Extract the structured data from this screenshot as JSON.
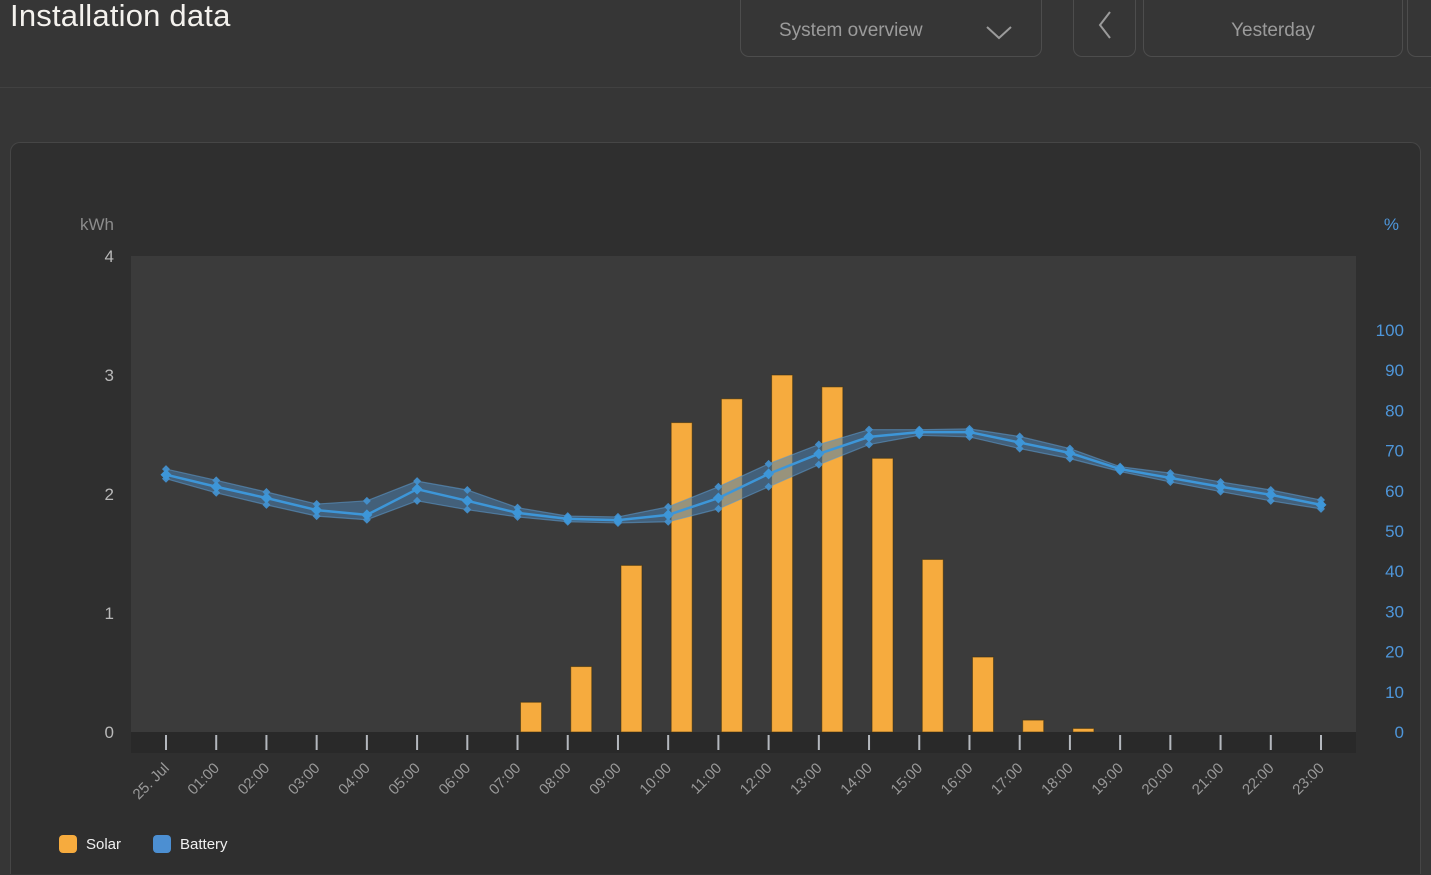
{
  "header": {
    "title": "Installation data",
    "view_selector": {
      "label": "System overview",
      "icon": "chevron-down-icon"
    },
    "prev_button": {
      "icon": "chevron-left-icon"
    },
    "period": {
      "label": "Yesterday"
    }
  },
  "chart_data": {
    "type": "bar+line",
    "title": "",
    "x_labels": [
      "25. Jul",
      "01:00",
      "02:00",
      "03:00",
      "04:00",
      "05:00",
      "06:00",
      "07:00",
      "08:00",
      "09:00",
      "10:00",
      "11:00",
      "12:00",
      "13:00",
      "14:00",
      "15:00",
      "16:00",
      "17:00",
      "18:00",
      "19:00",
      "20:00",
      "21:00",
      "22:00",
      "23:00"
    ],
    "left_axis": {
      "label": "kWh",
      "ticks": [
        0,
        1,
        2,
        3,
        4
      ],
      "range": [
        0,
        4
      ],
      "tick_color": "#b9b9b9",
      "unit_color": "#8c8c8c"
    },
    "right_axis": {
      "label": "%",
      "ticks": [
        0,
        10,
        20,
        30,
        40,
        50,
        60,
        70,
        80,
        90,
        100
      ],
      "range": [
        0,
        118.4
      ],
      "tick_color": "#4e96da",
      "unit_color": "#4e96da"
    },
    "grid": false,
    "legend_position": "bottom-left",
    "series": [
      {
        "name": "Solar",
        "type": "bar",
        "axis": "left",
        "unit": "kWh",
        "color": "#F6AB3E",
        "values": [
          0,
          0,
          0,
          0,
          0,
          0,
          0,
          0.25,
          0.55,
          1.4,
          2.6,
          2.8,
          3.0,
          2.9,
          2.3,
          1.45,
          0.63,
          0.1,
          0.03,
          0,
          0,
          0,
          0,
          0
        ]
      },
      {
        "name": "Battery",
        "type": "line_with_range_band",
        "axis": "right",
        "unit": "%",
        "color": "#3D96D8",
        "band_color": "#4A7FAE",
        "avg": [
          64,
          61,
          58.2,
          55.2,
          54,
          60.4,
          57.5,
          54.5,
          53,
          52.7,
          54,
          58.2,
          64.2,
          69.2,
          73.4,
          74.6,
          74.6,
          72,
          69.4,
          65.4,
          63.2,
          61,
          59,
          56.5
        ],
        "min": [
          63,
          59.5,
          56.5,
          53.7,
          52.8,
          57.5,
          55.3,
          53.5,
          52.3,
          52,
          52.3,
          55.5,
          61,
          66.5,
          71.5,
          73.8,
          73.4,
          70.5,
          68,
          64.8,
          62.2,
          59.8,
          57.5,
          55.5
        ],
        "max": [
          65.4,
          62.6,
          59.7,
          56.7,
          57.5,
          62.4,
          60.2,
          55.8,
          53.7,
          53.5,
          56,
          61,
          66.7,
          71.5,
          75.2,
          75.2,
          75.4,
          73.5,
          70.5,
          66,
          64.4,
          62.2,
          60.2,
          57.7
        ]
      }
    ]
  }
}
